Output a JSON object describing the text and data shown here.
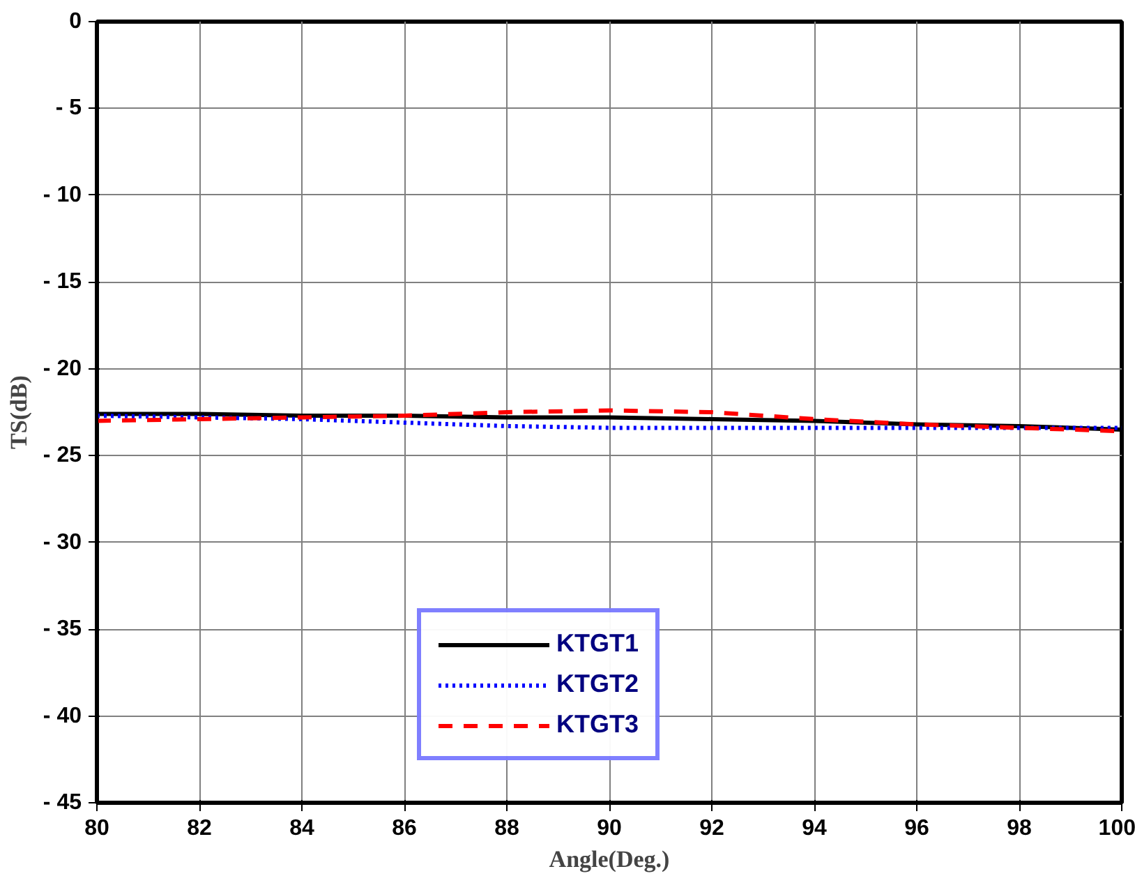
{
  "chart_data": {
    "type": "line",
    "xlabel": "Angle(Deg.)",
    "ylabel": "TS(dB)",
    "x": [
      80,
      82,
      84,
      86,
      88,
      90,
      92,
      94,
      96,
      98,
      100
    ],
    "series": [
      {
        "name": "KTGT1",
        "color": "#000000",
        "line_style": "solid",
        "values": [
          -22.6,
          -22.6,
          -22.7,
          -22.7,
          -22.8,
          -22.8,
          -22.9,
          -23.0,
          -23.2,
          -23.3,
          -23.5
        ]
      },
      {
        "name": "KTGT2",
        "color": "#0000ff",
        "line_style": "dotted",
        "values": [
          -22.7,
          -22.8,
          -22.9,
          -23.1,
          -23.3,
          -23.4,
          -23.4,
          -23.4,
          -23.4,
          -23.4,
          -23.4
        ]
      },
      {
        "name": "KTGT3",
        "color": "#ff0000",
        "line_style": "dashed",
        "values": [
          -23.0,
          -22.9,
          -22.8,
          -22.7,
          -22.5,
          -22.4,
          -22.5,
          -22.9,
          -23.2,
          -23.4,
          -23.6
        ]
      }
    ],
    "xlim": [
      80,
      100
    ],
    "xticks": [
      80,
      82,
      84,
      86,
      88,
      90,
      92,
      94,
      96,
      98,
      100
    ],
    "ylim": [
      -45,
      0
    ],
    "yticks": [
      {
        "value": -45,
        "label": "- 45"
      },
      {
        "value": -40,
        "label": "- 40"
      },
      {
        "value": -35,
        "label": "- 35"
      },
      {
        "value": -30,
        "label": "- 30"
      },
      {
        "value": -25,
        "label": "- 25"
      },
      {
        "value": -20,
        "label": "- 20"
      },
      {
        "value": -15,
        "label": "- 15"
      },
      {
        "value": -10,
        "label": "- 10"
      },
      {
        "value": -5,
        "label": "- 5"
      },
      0
    ],
    "grid": true,
    "legend": "bottom"
  }
}
